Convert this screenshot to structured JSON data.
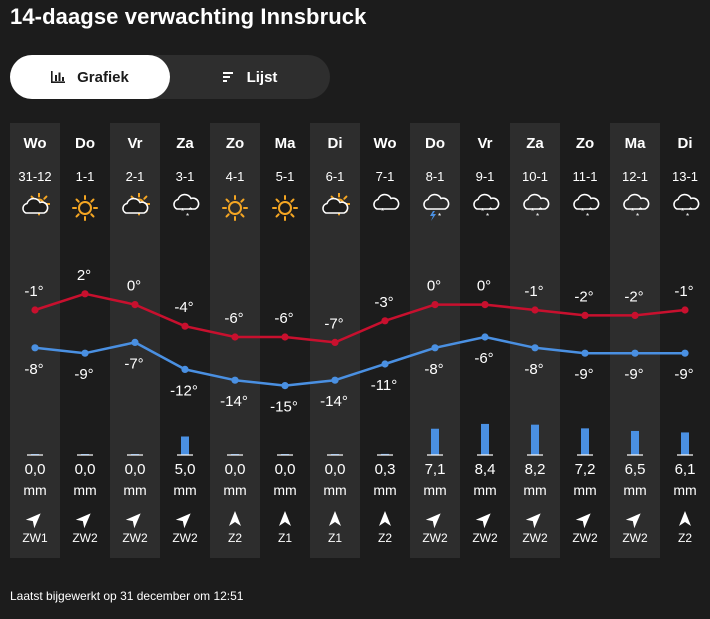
{
  "title": "14-daagse verwachting Innsbruck",
  "toggle": {
    "graph_label": "Grafiek",
    "list_label": "Lijst",
    "active": "Grafiek"
  },
  "colors": {
    "max_line": "#c8102e",
    "min_line": "#4a90e2",
    "precip_bar": "#4a90e2",
    "shade": "#2d2d2d",
    "sun": "#f5a623"
  },
  "days": [
    {
      "day": "Wo",
      "date": "31-12",
      "icon": "partly-cloudy-icon",
      "max": "-1°",
      "min": "-8°",
      "precip": "0,0",
      "unit": "mm",
      "wind": "ZW1",
      "wind_dir": "SW"
    },
    {
      "day": "Do",
      "date": "1-1",
      "icon": "sun-icon",
      "max": "2°",
      "min": "-9°",
      "precip": "0,0",
      "unit": "mm",
      "wind": "ZW2",
      "wind_dir": "SW"
    },
    {
      "day": "Vr",
      "date": "2-1",
      "icon": "partly-cloudy-icon",
      "max": "0°",
      "min": "-7°",
      "precip": "0,0",
      "unit": "mm",
      "wind": "ZW2",
      "wind_dir": "SW"
    },
    {
      "day": "Za",
      "date": "3-1",
      "icon": "snow-icon",
      "max": "-4°",
      "min": "-12°",
      "precip": "5,0",
      "unit": "mm",
      "wind": "ZW2",
      "wind_dir": "SW"
    },
    {
      "day": "Zo",
      "date": "4-1",
      "icon": "sun-icon",
      "max": "-6°",
      "min": "-14°",
      "precip": "0,0",
      "unit": "mm",
      "wind": "Z2",
      "wind_dir": "S"
    },
    {
      "day": "Ma",
      "date": "5-1",
      "icon": "sun-icon",
      "max": "-6°",
      "min": "-15°",
      "precip": "0,0",
      "unit": "mm",
      "wind": "Z1",
      "wind_dir": "S"
    },
    {
      "day": "Di",
      "date": "6-1",
      "icon": "partly-cloudy-icon",
      "max": "-7°",
      "min": "-14°",
      "precip": "0,0",
      "unit": "mm",
      "wind": "Z1",
      "wind_dir": "S"
    },
    {
      "day": "Wo",
      "date": "7-1",
      "icon": "light-snow-icon",
      "max": "-3°",
      "min": "-11°",
      "precip": "0,3",
      "unit": "mm",
      "wind": "Z2",
      "wind_dir": "S"
    },
    {
      "day": "Do",
      "date": "8-1",
      "icon": "thunder-snow-icon",
      "max": "0°",
      "min": "-8°",
      "precip": "7,1",
      "unit": "mm",
      "wind": "ZW2",
      "wind_dir": "SW"
    },
    {
      "day": "Vr",
      "date": "9-1",
      "icon": "snow-icon",
      "max": "0°",
      "min": "-6°",
      "precip": "8,4",
      "unit": "mm",
      "wind": "ZW2",
      "wind_dir": "SW"
    },
    {
      "day": "Za",
      "date": "10-1",
      "icon": "snow-icon",
      "max": "-1°",
      "min": "-8°",
      "precip": "8,2",
      "unit": "mm",
      "wind": "ZW2",
      "wind_dir": "SW"
    },
    {
      "day": "Zo",
      "date": "11-1",
      "icon": "snow-icon",
      "max": "-2°",
      "min": "-9°",
      "precip": "7,2",
      "unit": "mm",
      "wind": "ZW2",
      "wind_dir": "SW"
    },
    {
      "day": "Ma",
      "date": "12-1",
      "icon": "snow-icon",
      "max": "-2°",
      "min": "-9°",
      "precip": "6,5",
      "unit": "mm",
      "wind": "ZW2",
      "wind_dir": "SW"
    },
    {
      "day": "Di",
      "date": "13-1",
      "icon": "snow-icon",
      "max": "-1°",
      "min": "-9°",
      "precip": "6,1",
      "unit": "mm",
      "wind": "Z2",
      "wind_dir": "S"
    }
  ],
  "chart_data": {
    "type": "line",
    "categories": [
      "31-12",
      "1-1",
      "2-1",
      "3-1",
      "4-1",
      "5-1",
      "6-1",
      "7-1",
      "8-1",
      "9-1",
      "10-1",
      "11-1",
      "12-1",
      "13-1"
    ],
    "series": [
      {
        "values": [
          -1,
          2,
          0,
          -4,
          -6,
          -6,
          -7,
          -3,
          0,
          0,
          -1,
          -2,
          -2,
          -1
        ]
      },
      {
        "values": [
          -8,
          -9,
          -7,
          -12,
          -14,
          -15,
          -14,
          -11,
          -8,
          -6,
          -8,
          -9,
          -9,
          -9
        ]
      }
    ],
    "precipitation_mm": [
      0.0,
      0.0,
      0.0,
      5.0,
      0.0,
      0.0,
      0.0,
      0.3,
      7.1,
      8.4,
      8.2,
      7.2,
      6.5,
      6.1
    ]
  },
  "footer": "Laatst bijgewerkt op 31 december om 12:51"
}
